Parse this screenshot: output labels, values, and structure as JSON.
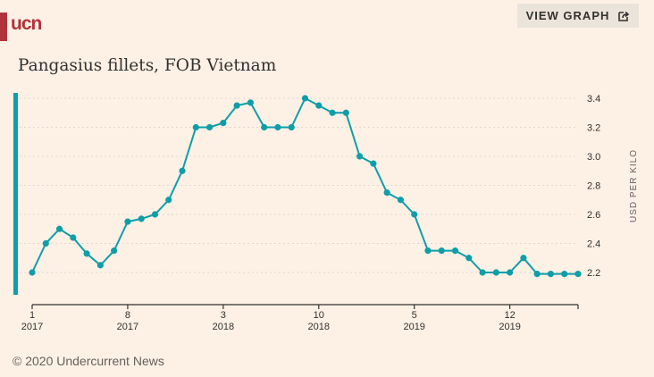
{
  "brand": {
    "logo_text": "ucn",
    "brand_color": "#b0333b"
  },
  "header": {
    "view_button_label": "VIEW GRAPH",
    "view_button_icon": "external-share-icon"
  },
  "title": "Pangasius fillets, FOB Vietnam",
  "footer": "© 2020 Undercurrent News",
  "colors": {
    "line": "#0f9ea8",
    "background": "#fdf1e6",
    "grid": "#e0d8cf",
    "axis": "#33302e"
  },
  "chart_data": {
    "type": "line",
    "title": "Pangasius fillets, FOB Vietnam",
    "xlabel": "",
    "ylabel": "USD PER KILO",
    "ylim": [
      2.2,
      3.4
    ],
    "yticks": [
      3.4,
      3.2,
      3.0,
      2.8,
      2.6,
      2.4,
      2.2
    ],
    "ytick_labels": [
      "3.4",
      "3.2",
      "3.0",
      "2.8",
      "2.6",
      "2.4",
      "2.2"
    ],
    "y_axis_side": "right",
    "grid": true,
    "legend": "none",
    "xticks": [
      {
        "index": 0,
        "month": "1",
        "year": "2017"
      },
      {
        "index": 7,
        "month": "8",
        "year": "2017"
      },
      {
        "index": 14,
        "month": "3",
        "year": "2018"
      },
      {
        "index": 21,
        "month": "10",
        "year": "2018"
      },
      {
        "index": 28,
        "month": "5",
        "year": "2019"
      },
      {
        "index": 35,
        "month": "12",
        "year": "2019"
      }
    ],
    "x": [
      "2017-01",
      "2017-02",
      "2017-03",
      "2017-04",
      "2017-05",
      "2017-06",
      "2017-07",
      "2017-08",
      "2017-09",
      "2017-10",
      "2017-11",
      "2017-12",
      "2018-01",
      "2018-02",
      "2018-03",
      "2018-04",
      "2018-05",
      "2018-06",
      "2018-07",
      "2018-08",
      "2018-09",
      "2018-10",
      "2018-11",
      "2018-12",
      "2019-01",
      "2019-02",
      "2019-03",
      "2019-04",
      "2019-05",
      "2019-06",
      "2019-07",
      "2019-08",
      "2019-09",
      "2019-10",
      "2019-11",
      "2019-12",
      "2020-01",
      "2020-02",
      "2020-03",
      "2020-04",
      "2020-05"
    ],
    "series": [
      {
        "name": "Pangasius fillets, FOB Vietnam",
        "values": [
          2.2,
          2.4,
          2.5,
          2.44,
          2.33,
          2.25,
          2.35,
          2.55,
          2.57,
          2.6,
          2.7,
          2.9,
          3.2,
          3.2,
          3.23,
          3.35,
          3.37,
          3.2,
          3.2,
          3.2,
          3.4,
          3.35,
          3.3,
          3.3,
          3.0,
          2.95,
          2.75,
          2.7,
          2.6,
          2.35,
          2.35,
          2.35,
          2.3,
          2.2,
          2.2,
          2.2,
          2.3,
          2.19,
          2.19,
          2.19,
          2.19
        ]
      }
    ]
  }
}
